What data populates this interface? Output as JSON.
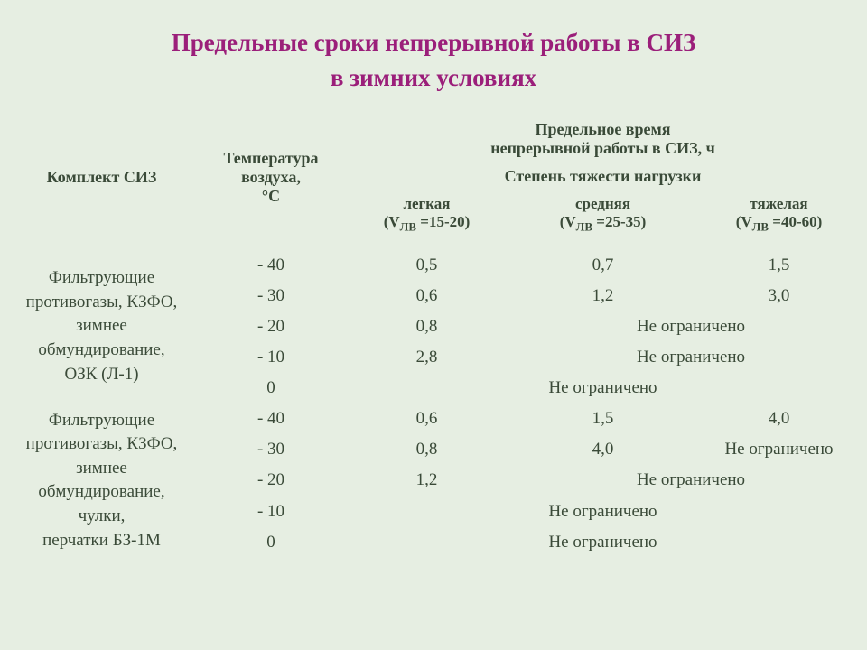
{
  "title": {
    "line1": "Предельные сроки непрерывной работы в СИЗ",
    "line2": "в зимних условиях"
  },
  "headers": {
    "kit": "Комплект СИЗ",
    "temp_l1": "Температура",
    "temp_l2": "воздуха,",
    "temp_l3": "°С",
    "limit_l1": "Предельное время",
    "limit_l2": "непрерывной работы в СИЗ, ч",
    "severity": "Степень тяжести нагрузки",
    "light_l1": "легкая",
    "light_l2": "(V",
    "light_sub": "ЛВ",
    "light_l3": " =15-20)",
    "medium_l1": "средняя",
    "medium_l2": "(V",
    "medium_sub": "ЛВ",
    "medium_l3": " =25-35)",
    "heavy_l1": "тяжелая",
    "heavy_l2": "(V",
    "heavy_sub": "ЛВ",
    "heavy_l3": " =40-60)"
  },
  "unlimited": "Не ограничено",
  "group1": {
    "kit_l1": "Фильтрующие",
    "kit_l2": "противогазы, КЗФО,",
    "kit_l3": "зимнее",
    "kit_l4": "обмундирование,",
    "kit_l5": "ОЗК (Л-1)",
    "rows": [
      {
        "t": "- 40",
        "light": "0,5",
        "medium": "0,7",
        "heavy": "1,5",
        "med_span": 1
      },
      {
        "t": "- 30",
        "light": "0,6",
        "medium": "1,2",
        "heavy": "3,0",
        "med_span": 1
      },
      {
        "t": "- 20",
        "light": "0,8",
        "medium": "Не ограничено",
        "heavy": "",
        "med_span": 2
      },
      {
        "t": "- 10",
        "light": "2,8",
        "medium": "Не ограничено",
        "heavy": "",
        "med_span": 2
      },
      {
        "t": "0",
        "light": "",
        "medium": "Не ограничено",
        "heavy": "",
        "light_span": 3
      }
    ]
  },
  "group2": {
    "kit_l1": "Фильтрующие",
    "kit_l2": "противогазы, КЗФО,",
    "kit_l3": "зимнее",
    "kit_l4": "обмундирование,",
    "kit_l5": "чулки,",
    "kit_l6": "перчатки БЗ-1М",
    "rows": [
      {
        "t": "- 40",
        "light": "0,6",
        "medium": "1,5",
        "heavy": "4,0",
        "med_span": 1
      },
      {
        "t": "- 30",
        "light": "0,8",
        "medium": "4,0",
        "heavy": "Не ограничено",
        "med_span": 1
      },
      {
        "t": "- 20",
        "light": "1,2",
        "medium": "Не ограничено",
        "heavy": "",
        "med_span": 2
      },
      {
        "t": "- 10",
        "light": "",
        "medium": "Не ограничено",
        "heavy": "",
        "light_span": 3
      },
      {
        "t": "0",
        "light": "",
        "medium": "Не ограничено",
        "heavy": "",
        "light_span": 3
      }
    ]
  },
  "style": {
    "bg": "#e6eee2",
    "title_color": "#9b1f7a",
    "text_color": "#3a4a38",
    "title_fontsize": 27,
    "header_fontsize": 18,
    "body_fontsize": 19
  }
}
